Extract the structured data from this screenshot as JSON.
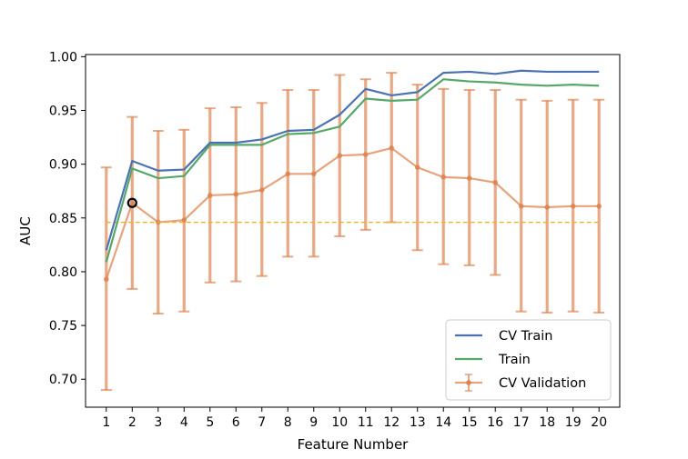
{
  "chart_data": {
    "type": "line",
    "title": "",
    "xlabel": "Feature Number",
    "ylabel": "AUC",
    "x": [
      1,
      2,
      3,
      4,
      5,
      6,
      7,
      8,
      9,
      10,
      11,
      12,
      13,
      14,
      15,
      16,
      17,
      18,
      19,
      20
    ],
    "x_ticks": [
      1,
      2,
      3,
      4,
      5,
      6,
      7,
      8,
      9,
      10,
      11,
      12,
      13,
      14,
      15,
      16,
      17,
      18,
      19,
      20
    ],
    "xlim": [
      0.2,
      20.8
    ],
    "ylim": [
      0.674,
      1.002
    ],
    "y_ticks": [
      0.7,
      0.75,
      0.8,
      0.85,
      0.9,
      0.95,
      1.0
    ],
    "y_tick_labels": [
      "0.70",
      "0.75",
      "0.80",
      "0.85",
      "0.90",
      "0.95",
      "1.00"
    ],
    "grid": false,
    "legend_position": "bottom-right",
    "series": [
      {
        "name": "CV Train",
        "color": "#4c72b0",
        "kind": "line",
        "values": [
          0.82,
          0.903,
          0.894,
          0.895,
          0.92,
          0.92,
          0.923,
          0.931,
          0.932,
          0.946,
          0.97,
          0.964,
          0.967,
          0.985,
          0.986,
          0.984,
          0.987,
          0.986,
          0.986,
          0.986
        ]
      },
      {
        "name": "Train",
        "color": "#55a868",
        "kind": "line",
        "values": [
          0.809,
          0.896,
          0.887,
          0.889,
          0.918,
          0.918,
          0.918,
          0.928,
          0.929,
          0.935,
          0.961,
          0.959,
          0.96,
          0.979,
          0.977,
          0.976,
          0.974,
          0.973,
          0.974,
          0.973
        ]
      },
      {
        "name": "CV Validation",
        "color": "#dd8452",
        "kind": "errorbar",
        "values": [
          0.793,
          0.864,
          0.846,
          0.848,
          0.871,
          0.872,
          0.876,
          0.891,
          0.891,
          0.908,
          0.909,
          0.915,
          0.897,
          0.888,
          0.887,
          0.883,
          0.861,
          0.86,
          0.861,
          0.861
        ],
        "error_low": [
          0.69,
          0.784,
          0.761,
          0.763,
          0.79,
          0.791,
          0.796,
          0.814,
          0.814,
          0.833,
          0.839,
          0.846,
          0.82,
          0.807,
          0.806,
          0.797,
          0.763,
          0.762,
          0.763,
          0.762
        ],
        "error_high": [
          0.897,
          0.944,
          0.931,
          0.932,
          0.952,
          0.953,
          0.957,
          0.969,
          0.969,
          0.983,
          0.979,
          0.985,
          0.974,
          0.97,
          0.969,
          0.969,
          0.96,
          0.959,
          0.96,
          0.96
        ]
      }
    ],
    "reference_line": {
      "y": 0.846,
      "color": "#e8b52a",
      "style": "dashed"
    },
    "highlight_point": {
      "x": 2,
      "y": 0.864,
      "color": "#000000"
    }
  }
}
